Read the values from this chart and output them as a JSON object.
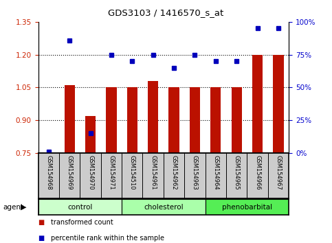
{
  "title": "GDS3103 / 1416570_s_at",
  "samples": [
    "GSM154968",
    "GSM154969",
    "GSM154970",
    "GSM154971",
    "GSM154510",
    "GSM154961",
    "GSM154962",
    "GSM154963",
    "GSM154964",
    "GSM154965",
    "GSM154966",
    "GSM154967"
  ],
  "bar_values": [
    0.75,
    1.06,
    0.92,
    1.05,
    1.05,
    1.08,
    1.05,
    1.05,
    1.05,
    1.05,
    1.2,
    1.2
  ],
  "dot_values_pct": [
    1,
    86,
    15,
    75,
    70,
    75,
    65,
    75,
    70,
    70,
    95,
    95
  ],
  "ylim_left": [
    0.75,
    1.35
  ],
  "ylim_right": [
    0,
    100
  ],
  "yticks_left": [
    0.75,
    0.9,
    1.05,
    1.2,
    1.35
  ],
  "ytick_labels_left": [
    "0.75",
    "0.90",
    "1.05",
    "1.20",
    "1.35"
  ],
  "yticks_right": [
    0,
    25,
    50,
    75,
    100
  ],
  "ytick_labels_right": [
    "0%",
    "25%",
    "50%",
    "75%",
    "100%"
  ],
  "bar_color": "#bb1100",
  "dot_color": "#0000bb",
  "bar_baseline": 0.75,
  "groups": [
    {
      "label": "control",
      "start": 0,
      "end": 3,
      "color": "#ccffcc"
    },
    {
      "label": "cholesterol",
      "start": 4,
      "end": 7,
      "color": "#aaffaa"
    },
    {
      "label": "phenobarbital",
      "start": 8,
      "end": 11,
      "color": "#55ee55"
    }
  ],
  "agent_label": "agent",
  "legend_bar_label": "transformed count",
  "legend_dot_label": "percentile rank within the sample",
  "tick_label_color_left": "#cc2200",
  "tick_label_color_right": "#0000cc",
  "sample_box_color": "#cccccc",
  "bar_width": 0.5
}
